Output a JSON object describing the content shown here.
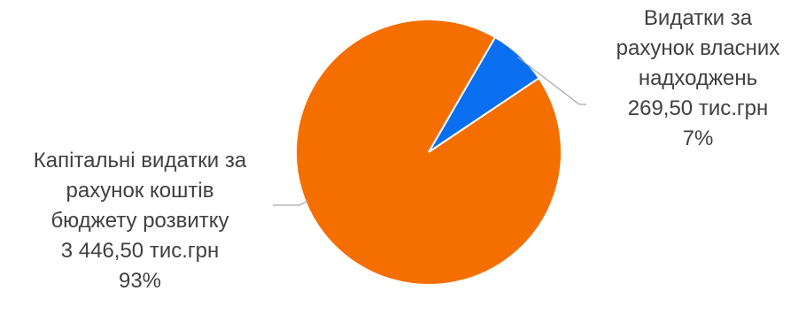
{
  "chart_data": {
    "type": "pie",
    "slices": [
      {
        "label_lines": [
          "Видатки за",
          "рахунок власних",
          "надходжень"
        ],
        "amount_text": "269,50 тис.грн",
        "value": 269.5,
        "percent_text": "7%",
        "color": "#0a6ef0"
      },
      {
        "label_lines": [
          "Капітальні видатки за",
          "рахунок коштів",
          "бюджету розвитку"
        ],
        "amount_text": "3 446,50 тис.грн",
        "value": 3446.5,
        "percent_text": "93%",
        "color": "#f56e00"
      }
    ],
    "start_angle_deg": 0,
    "direction": "clockwise",
    "leader_line_color": "#a6a6a6"
  }
}
